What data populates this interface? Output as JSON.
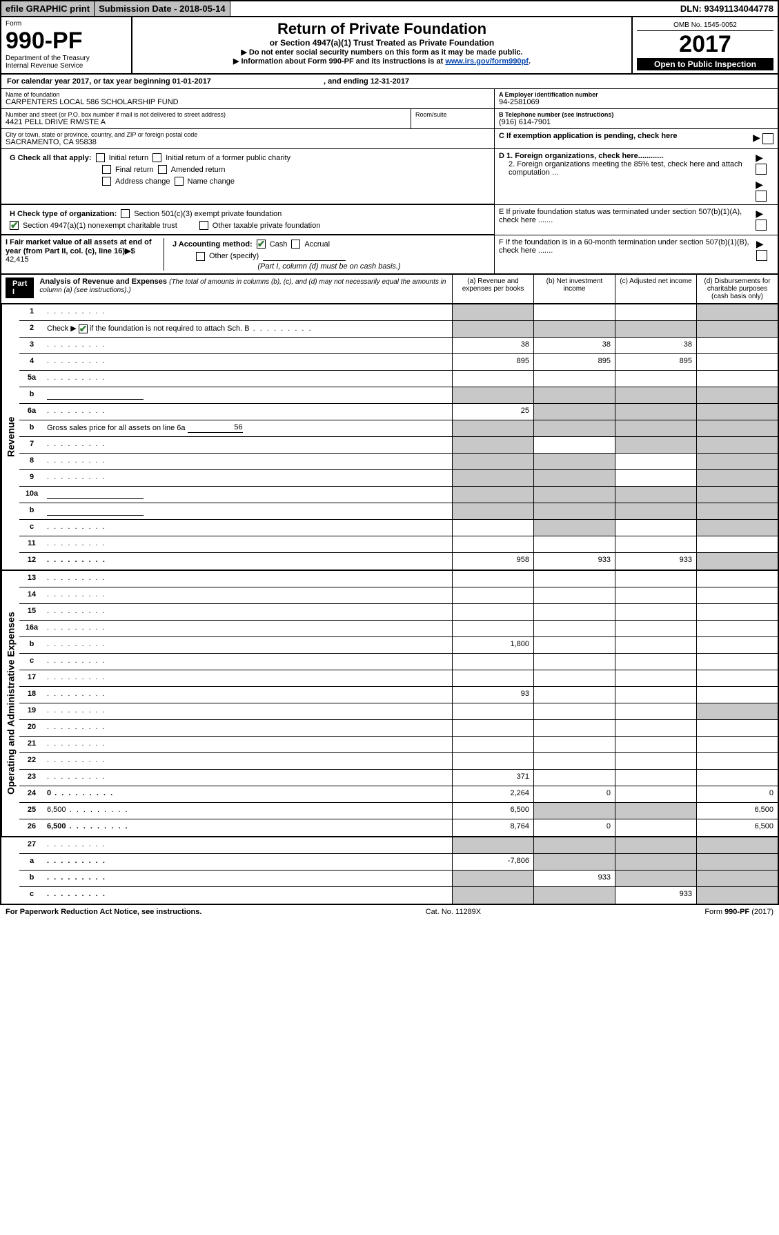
{
  "topbar": {
    "efile": "efile GRAPHIC print",
    "submission": "Submission Date - 2018-05-14",
    "dln": "DLN: 93491134044778"
  },
  "header": {
    "form_label": "Form",
    "form_number": "990-PF",
    "dept": "Department of the Treasury",
    "irs": "Internal Revenue Service",
    "title": "Return of Private Foundation",
    "subtitle": "or Section 4947(a)(1) Trust Treated as Private Foundation",
    "instr1": "▶ Do not enter social security numbers on this form as it may be made public.",
    "instr2_prefix": "▶ Information about Form 990-PF and its instructions is at ",
    "instr2_link": "www.irs.gov/form990pf",
    "period": ".",
    "omb": "OMB No. 1545-0052",
    "year": "2017",
    "open_public": "Open to Public Inspection"
  },
  "cal_year": {
    "prefix": "For calendar year 2017, or tax year beginning ",
    "begin": "01-01-2017",
    "mid": " , and ending ",
    "end": "12-31-2017"
  },
  "info": {
    "name_label": "Name of foundation",
    "name": "CARPENTERS LOCAL 586 SCHOLARSHIP FUND",
    "ein_label": "A Employer identification number",
    "ein": "94-2581069",
    "addr_label": "Number and street (or P.O. box number if mail is not delivered to street address)",
    "addr": "4421 PELL DRIVE RM/STE A",
    "room_label": "Room/suite",
    "phone_label": "B Telephone number (see instructions)",
    "phone": "(916) 614-7901",
    "city_label": "City or town, state or province, country, and ZIP or foreign postal code",
    "city": "SACRAMENTO, CA  95838",
    "c_label": "C If exemption application is pending, check here"
  },
  "g": {
    "label": "G Check all that apply:",
    "o1": "Initial return",
    "o2": "Initial return of a former public charity",
    "o3": "Final return",
    "o4": "Amended return",
    "o5": "Address change",
    "o6": "Name change"
  },
  "d": {
    "d1": "D 1. Foreign organizations, check here............",
    "d2": "2. Foreign organizations meeting the 85% test, check here and attach computation ..."
  },
  "h": {
    "label": "H Check type of organization:",
    "o1": "Section 501(c)(3) exempt private foundation",
    "o2": "Section 4947(a)(1) nonexempt charitable trust",
    "o3": "Other taxable private foundation"
  },
  "e": "E  If private foundation status was terminated under section 507(b)(1)(A), check here .......",
  "i": {
    "label": "I Fair market value of all assets at end of year (from Part II, col. (c), line 16)▶$  ",
    "value": "42,415",
    "j_label": "J Accounting method:",
    "cash": "Cash",
    "accrual": "Accrual",
    "other": "Other (specify)",
    "note": "(Part I, column (d) must be on cash basis.)"
  },
  "f": "F  If the foundation is in a 60-month termination under section 507(b)(1)(B), check here .......",
  "part1": {
    "label": "Part I",
    "title": "Analysis of Revenue and Expenses",
    "sub": "(The total of amounts in columns (b), (c), and (d) may not necessarily equal the amounts in column (a) (see instructions).)",
    "col_a": "(a)   Revenue and expenses per books",
    "col_b": "(b)   Net investment income",
    "col_c": "(c)   Adjusted net income",
    "col_d": "(d)   Disbursements for charitable purposes (cash basis only)"
  },
  "revenue_label": "Revenue",
  "opex_label": "Operating and Administrative Expenses",
  "rows": {
    "r1": {
      "n": "1",
      "d": "",
      "a": "",
      "b": "",
      "c": "",
      "sa": 1,
      "sb": 0,
      "sc": 0,
      "sd": 1
    },
    "r2": {
      "n": "2",
      "d_pre": "Check ▶ ",
      "d_post": " if the foundation is not required to attach Sch. B",
      "a": "",
      "b": "",
      "c": "",
      "d": "",
      "sa": 1,
      "sb": 1,
      "sc": 1,
      "sd": 1,
      "chk": 1
    },
    "r3": {
      "n": "3",
      "d": "",
      "a": "38",
      "b": "38",
      "c": "38"
    },
    "r4": {
      "n": "4",
      "d": "",
      "a": "895",
      "b": "895",
      "c": "895"
    },
    "r5a": {
      "n": "5a",
      "d": "",
      "a": "",
      "b": "",
      "c": ""
    },
    "r5b": {
      "n": "b",
      "d": "",
      "a": "",
      "b": "",
      "c": "",
      "sa": 1,
      "sb": 1,
      "sc": 1,
      "sd": 1,
      "ul": 1
    },
    "r6a": {
      "n": "6a",
      "d": "",
      "a": "25",
      "b": "",
      "c": "",
      "sb": 1,
      "sc": 1,
      "sd": 1
    },
    "r6b": {
      "n": "b",
      "d_pre": "Gross sales price for all assets on line 6a ",
      "ulv": "56",
      "a": "",
      "b": "",
      "c": "",
      "d": "",
      "sa": 1,
      "sb": 1,
      "sc": 1,
      "sd": 1
    },
    "r7": {
      "n": "7",
      "d": "",
      "a": "",
      "b": "",
      "c": "",
      "sa": 1,
      "sc": 1,
      "sd": 1
    },
    "r8": {
      "n": "8",
      "d": "",
      "a": "",
      "b": "",
      "c": "",
      "sa": 1,
      "sb": 1,
      "sd": 1
    },
    "r9": {
      "n": "9",
      "d": "",
      "a": "",
      "b": "",
      "c": "",
      "sa": 1,
      "sb": 1,
      "sd": 1
    },
    "r10a": {
      "n": "10a",
      "d": "",
      "a": "",
      "b": "",
      "c": "",
      "sa": 1,
      "sb": 1,
      "sc": 1,
      "sd": 1,
      "ul": 1
    },
    "r10b": {
      "n": "b",
      "d": "",
      "a": "",
      "b": "",
      "c": "",
      "sa": 1,
      "sb": 1,
      "sc": 1,
      "sd": 1,
      "ul": 1
    },
    "r10c": {
      "n": "c",
      "d": "",
      "a": "",
      "b": "",
      "c": "",
      "sb": 1,
      "sd": 1
    },
    "r11": {
      "n": "11",
      "d": "",
      "a": "",
      "b": "",
      "c": ""
    },
    "r12": {
      "n": "12",
      "d": "",
      "a": "958",
      "b": "933",
      "c": "933",
      "sd": 1,
      "bold": 1
    },
    "r13": {
      "n": "13",
      "d": "",
      "a": "",
      "b": "",
      "c": ""
    },
    "r14": {
      "n": "14",
      "d": "",
      "a": "",
      "b": "",
      "c": ""
    },
    "r15": {
      "n": "15",
      "d": "",
      "a": "",
      "b": "",
      "c": ""
    },
    "r16a": {
      "n": "16a",
      "d": "",
      "a": "",
      "b": "",
      "c": ""
    },
    "r16b": {
      "n": "b",
      "d": "",
      "a": "1,800",
      "b": "",
      "c": ""
    },
    "r16c": {
      "n": "c",
      "d": "",
      "a": "",
      "b": "",
      "c": ""
    },
    "r17": {
      "n": "17",
      "d": "",
      "a": "",
      "b": "",
      "c": ""
    },
    "r18": {
      "n": "18",
      "d": "",
      "a": "93",
      "b": "",
      "c": ""
    },
    "r19": {
      "n": "19",
      "d": "",
      "a": "",
      "b": "",
      "c": "",
      "sd": 1
    },
    "r20": {
      "n": "20",
      "d": "",
      "a": "",
      "b": "",
      "c": ""
    },
    "r21": {
      "n": "21",
      "d": "",
      "a": "",
      "b": "",
      "c": ""
    },
    "r22": {
      "n": "22",
      "d": "",
      "a": "",
      "b": "",
      "c": ""
    },
    "r23": {
      "n": "23",
      "d": "",
      "a": "371",
      "b": "",
      "c": ""
    },
    "r24": {
      "n": "24",
      "d": "0",
      "a": "2,264",
      "b": "0",
      "c": "",
      "bold": 1
    },
    "r25": {
      "n": "25",
      "d": "6,500",
      "a": "6,500",
      "b": "",
      "c": "",
      "sb": 1,
      "sc": 1
    },
    "r26": {
      "n": "26",
      "d": "6,500",
      "a": "8,764",
      "b": "0",
      "c": "",
      "bold": 1
    },
    "r27": {
      "n": "27",
      "d": "",
      "a": "",
      "b": "",
      "c": "",
      "sa": 1,
      "sb": 1,
      "sc": 1,
      "sd": 1
    },
    "r27a": {
      "n": "a",
      "d": "",
      "a": "-7,806",
      "b": "",
      "c": "",
      "sb": 1,
      "sc": 1,
      "sd": 1,
      "bold": 1
    },
    "r27b": {
      "n": "b",
      "d": "",
      "a": "",
      "b": "933",
      "c": "",
      "sa": 1,
      "sc": 1,
      "sd": 1,
      "bold": 1
    },
    "r27c": {
      "n": "c",
      "d": "",
      "a": "",
      "b": "",
      "c": "933",
      "sa": 1,
      "sb": 1,
      "sd": 1,
      "bold": 1
    }
  },
  "footer": {
    "left": "For Paperwork Reduction Act Notice, see instructions.",
    "mid": "Cat. No. 11289X",
    "right_pre": "Form ",
    "right_bold": "990-PF",
    "right_post": " (2017)"
  }
}
